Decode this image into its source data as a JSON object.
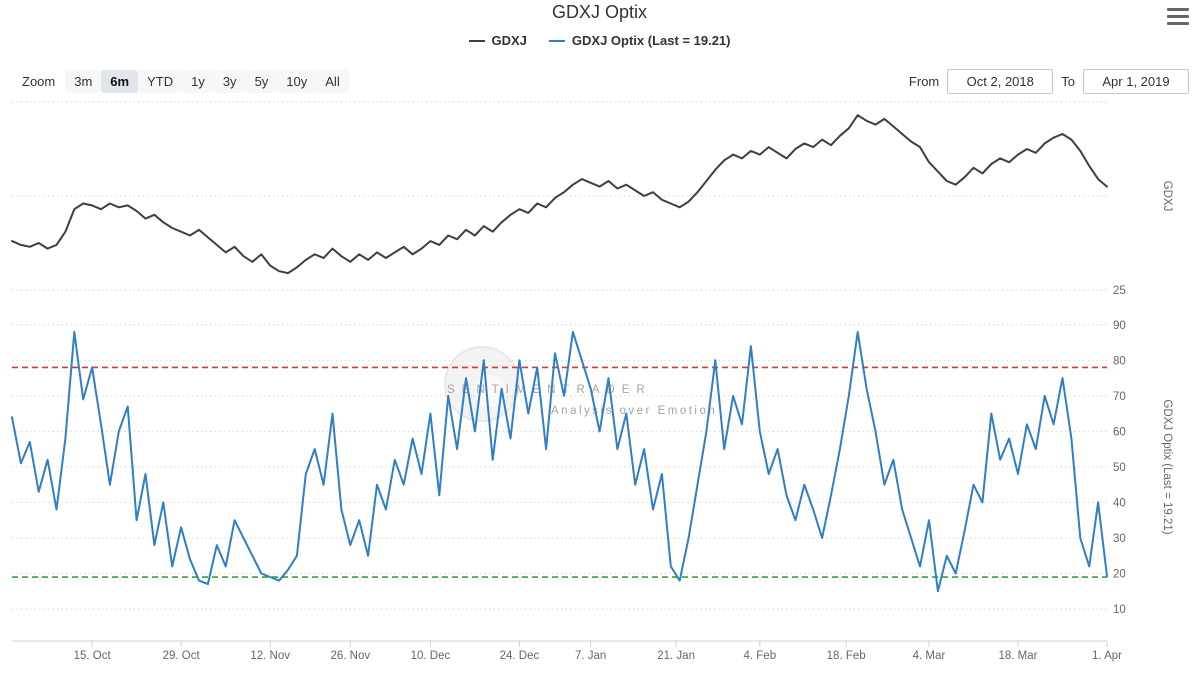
{
  "header": {
    "title": "GDXJ Optix"
  },
  "legend": [
    {
      "label": "GDXJ",
      "color": "#3f3f3f"
    },
    {
      "label": "GDXJ Optix (Last = 19.21)",
      "color": "#2f7ec8"
    }
  ],
  "range_selector": {
    "zoom_label": "Zoom",
    "buttons": [
      "3m",
      "6m",
      "YTD",
      "1y",
      "3y",
      "5y",
      "10y",
      "All"
    ],
    "active": "6m",
    "from_label": "From",
    "from_value": "Oct 2, 2018",
    "to_label": "To",
    "to_value": "Apr 1, 2019"
  },
  "watermark": {
    "line1": "SENTIMENTRADER",
    "line2": "Analysis over Emotion"
  },
  "chart_data": {
    "type": "line",
    "title": "GDXJ Optix",
    "x_axis": {
      "range_start": "Oct 2, 2018",
      "range_end": "Apr 1, 2019",
      "tick_labels": [
        "15. Oct",
        "29. Oct",
        "12. Nov",
        "26. Nov",
        "10. Dec",
        "24. Dec",
        "7. Jan",
        "21. Jan",
        "4. Feb",
        "18. Feb",
        "4. Mar",
        "18. Mar",
        "1. Apr"
      ],
      "tick_positions": [
        9,
        19,
        29,
        38,
        47,
        57,
        65,
        74.6,
        84,
        93.7,
        103,
        113,
        123
      ]
    },
    "dates": [
      "2018-10-02",
      "2018-10-03",
      "2018-10-04",
      "2018-10-05",
      "2018-10-08",
      "2018-10-09",
      "2018-10-10",
      "2018-10-11",
      "2018-10-12",
      "2018-10-15",
      "2018-10-16",
      "2018-10-17",
      "2018-10-18",
      "2018-10-19",
      "2018-10-22",
      "2018-10-23",
      "2018-10-24",
      "2018-10-25",
      "2018-10-26",
      "2018-10-29",
      "2018-10-30",
      "2018-10-31",
      "2018-11-01",
      "2018-11-02",
      "2018-11-05",
      "2018-11-06",
      "2018-11-07",
      "2018-11-08",
      "2018-11-09",
      "2018-11-12",
      "2018-11-13",
      "2018-11-14",
      "2018-11-15",
      "2018-11-16",
      "2018-11-19",
      "2018-11-20",
      "2018-11-21",
      "2018-11-23",
      "2018-11-26",
      "2018-11-27",
      "2018-11-28",
      "2018-11-29",
      "2018-11-30",
      "2018-12-03",
      "2018-12-04",
      "2018-12-06",
      "2018-12-07",
      "2018-12-10",
      "2018-12-11",
      "2018-12-12",
      "2018-12-13",
      "2018-12-14",
      "2018-12-17",
      "2018-12-18",
      "2018-12-19",
      "2018-12-20",
      "2018-12-21",
      "2018-12-24",
      "2018-12-26",
      "2018-12-27",
      "2018-12-28",
      "2018-12-31",
      "2019-01-02",
      "2019-01-03",
      "2019-01-04",
      "2019-01-07",
      "2019-01-08",
      "2019-01-09",
      "2019-01-10",
      "2019-01-11",
      "2019-01-14",
      "2019-01-15",
      "2019-01-16",
      "2019-01-17",
      "2019-01-18",
      "2019-01-22",
      "2019-01-23",
      "2019-01-24",
      "2019-01-25",
      "2019-01-28",
      "2019-01-29",
      "2019-01-30",
      "2019-01-31",
      "2019-02-01",
      "2019-02-04",
      "2019-02-05",
      "2019-02-06",
      "2019-02-07",
      "2019-02-08",
      "2019-02-11",
      "2019-02-12",
      "2019-02-13",
      "2019-02-14",
      "2019-02-15",
      "2019-02-19",
      "2019-02-20",
      "2019-02-21",
      "2019-02-22",
      "2019-02-25",
      "2019-02-26",
      "2019-02-27",
      "2019-02-28",
      "2019-03-01",
      "2019-03-04",
      "2019-03-05",
      "2019-03-06",
      "2019-03-07",
      "2019-03-08",
      "2019-03-11",
      "2019-03-12",
      "2019-03-13",
      "2019-03-14",
      "2019-03-15",
      "2019-03-18",
      "2019-03-19",
      "2019-03-20",
      "2019-03-21",
      "2019-03-22",
      "2019-03-25",
      "2019-03-26",
      "2019-03-27",
      "2019-03-28",
      "2019-03-29",
      "2019-04-01"
    ],
    "panes": [
      {
        "name": "GDXJ",
        "axis_title": "GDXJ",
        "color": "#3f3f3f",
        "y_tick_labels": [
          25
        ],
        "gridlines": [
          25,
          30,
          35
        ],
        "ylim": [
          24.4,
          35.4
        ],
        "values": [
          27.6,
          27.4,
          27.3,
          27.5,
          27.2,
          27.4,
          28.1,
          29.3,
          29.6,
          29.5,
          29.3,
          29.6,
          29.4,
          29.5,
          29.2,
          28.8,
          29.0,
          28.6,
          28.3,
          28.1,
          27.9,
          28.2,
          27.8,
          27.4,
          27.0,
          27.3,
          26.8,
          26.5,
          26.9,
          26.3,
          26.0,
          25.9,
          26.2,
          26.6,
          26.9,
          26.7,
          27.2,
          26.8,
          26.5,
          26.9,
          26.6,
          27.0,
          26.7,
          27.0,
          27.3,
          26.9,
          27.2,
          27.6,
          27.4,
          27.9,
          27.7,
          28.2,
          27.9,
          28.4,
          28.1,
          28.6,
          29.0,
          29.3,
          29.1,
          29.6,
          29.4,
          29.9,
          30.2,
          30.6,
          30.9,
          30.7,
          30.5,
          30.8,
          30.4,
          30.6,
          30.3,
          30.0,
          30.2,
          29.8,
          29.6,
          29.4,
          29.7,
          30.2,
          30.8,
          31.4,
          31.9,
          32.2,
          32.0,
          32.4,
          32.2,
          32.6,
          32.3,
          32.0,
          32.5,
          32.8,
          32.6,
          33.0,
          32.7,
          33.2,
          33.6,
          34.3,
          34.0,
          33.8,
          34.1,
          33.7,
          33.3,
          32.9,
          32.6,
          31.8,
          31.3,
          30.8,
          30.6,
          31.0,
          31.5,
          31.2,
          31.7,
          32.0,
          31.8,
          32.2,
          32.5,
          32.3,
          32.8,
          33.1,
          33.3,
          33.0,
          32.4,
          31.6,
          30.9,
          30.5
        ]
      },
      {
        "name": "GDXJ Optix",
        "axis_title": "GDXJ Optix (Last = 19.21)",
        "color": "#2f7ec8",
        "last_value": 19.21,
        "y_tick_labels": [
          90,
          80,
          70,
          60,
          50,
          40,
          30,
          20,
          10
        ],
        "gridlines": [
          90,
          80,
          70,
          60,
          50,
          40,
          30,
          20,
          10
        ],
        "ylim": [
          8,
          92
        ],
        "thresholds": [
          {
            "value": 78,
            "color": "#e03333",
            "style": "dashed"
          },
          {
            "value": 19,
            "color": "#33a033",
            "style": "dashed"
          }
        ],
        "values": [
          64,
          51,
          57,
          43,
          52,
          38,
          58,
          88,
          69,
          78,
          62,
          45,
          60,
          67,
          35,
          48,
          28,
          40,
          22,
          33,
          24,
          18,
          17,
          28,
          22,
          35,
          30,
          25,
          20,
          19,
          18,
          21,
          25,
          48,
          55,
          45,
          65,
          38,
          28,
          35,
          25,
          45,
          38,
          52,
          45,
          58,
          48,
          65,
          42,
          70,
          55,
          75,
          60,
          80,
          52,
          72,
          58,
          80,
          65,
          78,
          55,
          82,
          70,
          88,
          80,
          72,
          60,
          75,
          55,
          65,
          45,
          55,
          38,
          48,
          22,
          18,
          30,
          45,
          60,
          80,
          55,
          70,
          62,
          84,
          60,
          48,
          55,
          42,
          35,
          45,
          38,
          30,
          42,
          55,
          70,
          88,
          72,
          60,
          45,
          52,
          38,
          30,
          22,
          35,
          15,
          25,
          20,
          32,
          45,
          40,
          65,
          52,
          58,
          48,
          62,
          55,
          70,
          62,
          75,
          58,
          30,
          22,
          40,
          19.21
        ]
      }
    ]
  }
}
